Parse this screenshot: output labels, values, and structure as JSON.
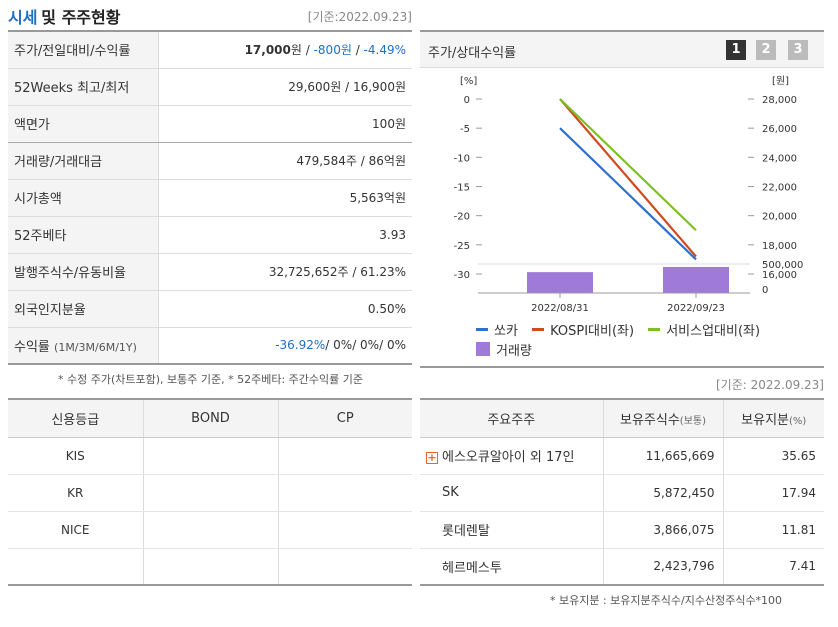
{
  "header": {
    "title_part1": "시세",
    "title_part2": "및 주주현황",
    "base_date": "[기준:2022.09.23]"
  },
  "price_table": [
    {
      "label": "주가/전일대비/수익률",
      "v1": "17,000",
      "u1": "원",
      "v2": "-800원",
      "v3": "-4.49%"
    },
    {
      "label": "52Weeks 최고/최저",
      "value": "29,600원 / 16,900원"
    },
    {
      "label": "액면가",
      "value": "100원"
    },
    {
      "label": "거래량/거래대금",
      "value": "479,584주 / 86억원"
    },
    {
      "label": "시가총액",
      "value": "5,563억원"
    },
    {
      "label": "52주베타",
      "value": "3.93"
    },
    {
      "label": "발행주식수/유동비율",
      "value": "32,725,652주 / 61.23%"
    },
    {
      "label": "외국인지분율",
      "value": "0.50%"
    },
    {
      "label": "수익률",
      "label_sub": "(1M/3M/6M/1Y)",
      "r1": "-36.92%",
      "r2": "0%",
      "r3": "0%",
      "r4": "0%"
    }
  ],
  "footnote1": "* 수정 주가(차트포함), 보통주 기준, * 52주베타: 주간수익률 기준",
  "chart_panel": {
    "title": "주가/상대수익률",
    "pages": [
      "1",
      "2",
      "3"
    ]
  },
  "chart_data": {
    "type": "line",
    "x": [
      "2022/08/31",
      "2022/09/23"
    ],
    "left_unit": "[%]",
    "right_unit": "[원]",
    "left_ticks": [
      "0",
      "-5",
      "-10",
      "-15",
      "-20",
      "-25",
      "-30"
    ],
    "right_ticks": [
      "28,000",
      "26,000",
      "24,000",
      "22,000",
      "20,000",
      "18,000",
      "16,000"
    ],
    "volume_ticks": [
      "500,000",
      "0"
    ],
    "series": [
      {
        "name": "쏘카",
        "color": "#2f6fd0",
        "values": [
          -5,
          -27.5
        ]
      },
      {
        "name": "KOSPI대비(좌)",
        "color": "#d04a20",
        "values": [
          0,
          -27
        ]
      },
      {
        "name": "서비스업대비(좌)",
        "color": "#7cc022",
        "values": [
          0,
          -22.5
        ]
      }
    ],
    "volume": {
      "name": "거래량",
      "color": "#a07ad8",
      "values": [
        360000,
        450000
      ]
    },
    "ylim": [
      -30,
      0
    ],
    "ylim_right": [
      16000,
      28000
    ],
    "vol_lim": [
      0,
      500000
    ]
  },
  "base_date2": "[기준: 2022.09.23]",
  "credit_table": {
    "headers": [
      "신용등급",
      "BOND",
      "CP"
    ],
    "rows": [
      [
        "KIS",
        "",
        ""
      ],
      [
        "KR",
        "",
        ""
      ],
      [
        "NICE",
        "",
        ""
      ],
      [
        "",
        "",
        ""
      ]
    ]
  },
  "holders_table": {
    "headers": [
      "주요주주",
      "보유주식수",
      "(보통)",
      "보유지분",
      "(%)"
    ],
    "rows": [
      {
        "name": "에스오큐알아이 외 17인",
        "shares": "11,665,669",
        "pct": "35.65"
      },
      {
        "name": "SK",
        "shares": "5,872,450",
        "pct": "17.94"
      },
      {
        "name": "롯데렌탈",
        "shares": "3,866,075",
        "pct": "11.81"
      },
      {
        "name": "헤르메스투",
        "shares": "2,423,796",
        "pct": "7.41"
      }
    ]
  },
  "footnote2": "* 보유지분 : 보유지분주식수/지수산정주식수*100"
}
